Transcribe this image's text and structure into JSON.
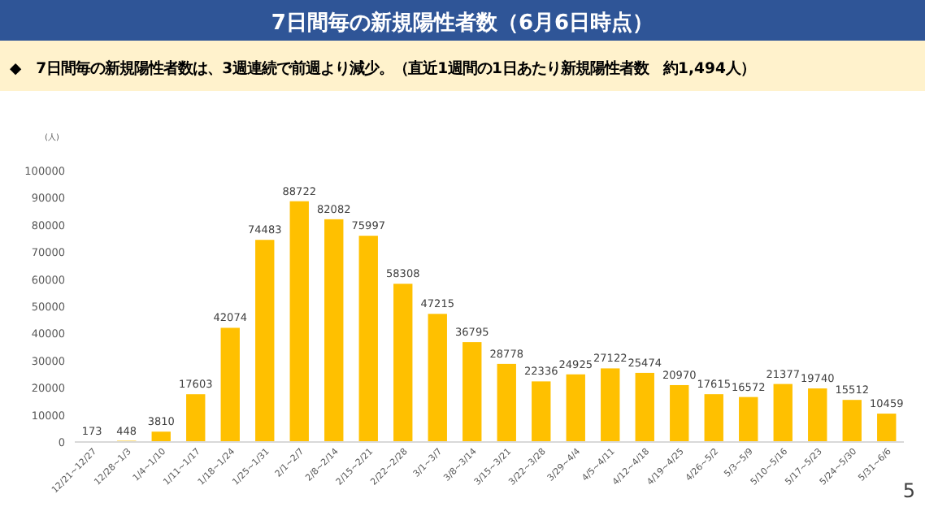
{
  "chart_data": {
    "type": "bar",
    "title": "7日間毎の新規陽性者数（6月6日時点）",
    "subtitle": "◆　7日間毎の新規陽性者数は、3週連続で前週より減少。（直近1週間の1日あたり新規陽性者数　約1,494人）",
    "ylabel": "(人)",
    "categories": [
      "12/21~12/27",
      "12/28~1/3",
      "1/4~1/10",
      "1/11~1/17",
      "1/18~1/24",
      "1/25~1/31",
      "2/1~2/7",
      "2/8~2/14",
      "2/15~2/21",
      "2/22~2/28",
      "3/1~3/7",
      "3/8~3/14",
      "3/15~3/21",
      "3/22~3/28",
      "3/29~4/4",
      "4/5~4/11",
      "4/12~4/18",
      "4/19~4/25",
      "4/26~5/2",
      "5/3~5/9",
      "5/10~5/16",
      "5/17~5/23",
      "5/24~5/30",
      "5/31~6/6"
    ],
    "values": [
      173,
      448,
      3810,
      17603,
      42074,
      74483,
      88722,
      82082,
      75997,
      58308,
      47215,
      36795,
      28778,
      22336,
      24925,
      27122,
      25474,
      20970,
      17615,
      16572,
      21377,
      19740,
      15512,
      10459
    ],
    "color": "#ffc000",
    "data_labels": true,
    "ylim": [
      0,
      100000
    ],
    "yticks": [
      0,
      10000,
      20000,
      30000,
      40000,
      50000,
      60000,
      70000,
      80000,
      90000,
      100000
    ],
    "grid": false,
    "annotations": [
      "5"
    ]
  }
}
